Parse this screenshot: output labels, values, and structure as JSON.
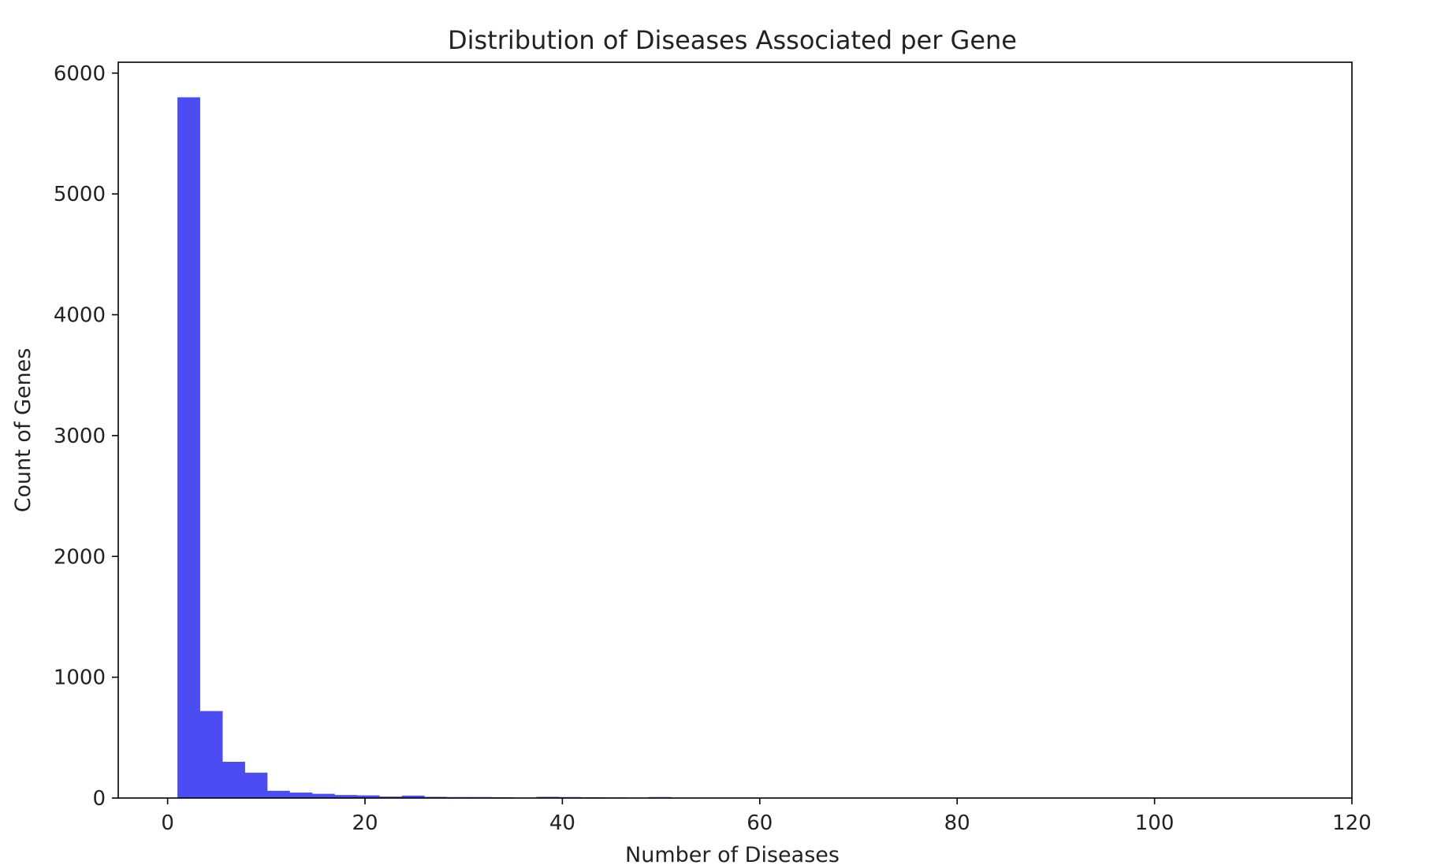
{
  "chart_data": {
    "type": "bar",
    "subtype": "histogram",
    "title": "Distribution of Diseases Associated per Gene",
    "xlabel": "Number of Diseases",
    "ylabel": "Count of Genes",
    "xlim": [
      -5,
      120
    ],
    "ylim": [
      0,
      6090
    ],
    "xticks": [
      0,
      20,
      40,
      60,
      80,
      100,
      120
    ],
    "yticks": [
      0,
      1000,
      2000,
      3000,
      4000,
      5000,
      6000
    ],
    "grid": false,
    "bar_color": "#4b4cf2",
    "bin_edges": [
      1,
      3.27,
      5.55,
      7.82,
      10.09,
      12.36,
      14.64,
      16.91,
      19.18,
      21.45,
      23.73,
      26.0,
      28.27,
      30.55,
      32.82,
      35.09,
      37.36,
      39.64,
      41.91,
      44.18,
      46.45,
      48.73,
      51.0
    ],
    "counts": [
      5800,
      720,
      300,
      210,
      60,
      45,
      35,
      25,
      22,
      12,
      20,
      10,
      8,
      8,
      6,
      2,
      10,
      8,
      6,
      5,
      2,
      8
    ]
  }
}
